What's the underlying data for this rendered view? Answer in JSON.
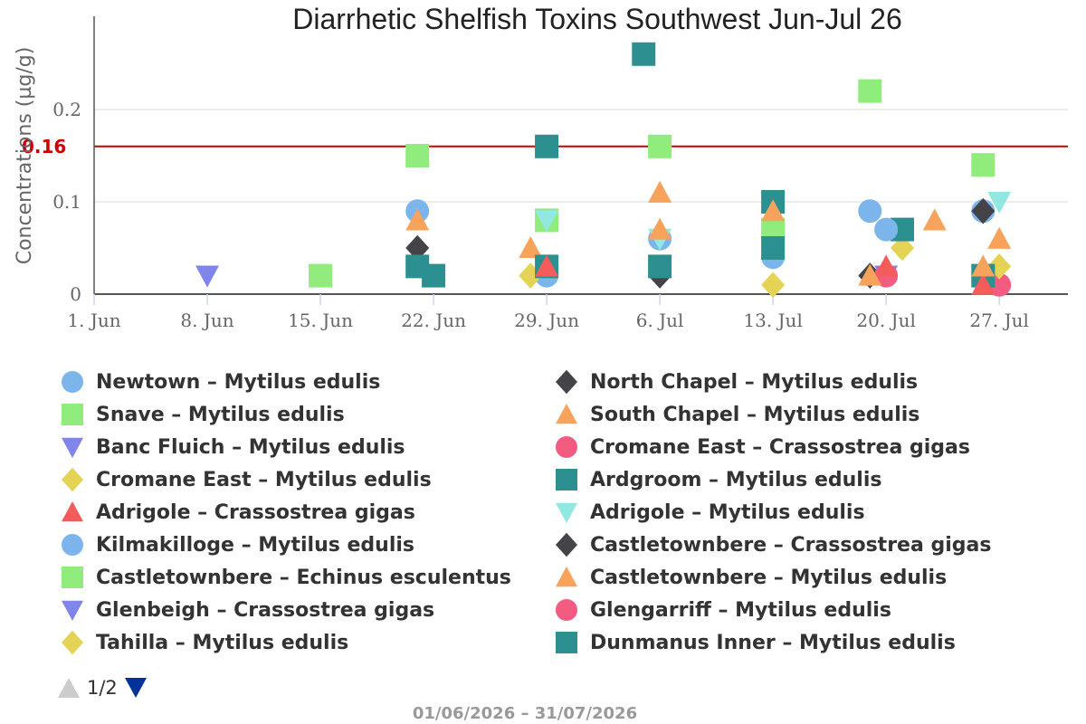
{
  "colors": {
    "blue": "#7cb5ec",
    "green": "#90ed7d",
    "purple": "#8085e9",
    "yellow": "#e4d354",
    "red": "#f45b5b",
    "dark": "#434348",
    "orange": "#f7a35c",
    "pink": "#f15c80",
    "teal": "#2b908f",
    "cyan": "#91e8e1",
    "limit": "#cc0000",
    "pager_active": "#003399",
    "pager_inactive": "#cccccc"
  },
  "chart_data": {
    "type": "scatter",
    "title": "Diarrhetic Shelfish Toxins Southwest Jun-Jul 26",
    "ylabel": "Concentrations (µg/g)",
    "xlabel": "",
    "xlim": [
      "2026-06-01",
      "2026-07-30"
    ],
    "ylim": [
      0,
      0.25
    ],
    "x_ticks": [
      {
        "date": "2026-06-01",
        "label": "1. Jun"
      },
      {
        "date": "2026-06-08",
        "label": "8. Jun"
      },
      {
        "date": "2026-06-15",
        "label": "15. Jun"
      },
      {
        "date": "2026-06-22",
        "label": "22. Jun"
      },
      {
        "date": "2026-06-29",
        "label": "29. Jun"
      },
      {
        "date": "2026-07-06",
        "label": "6. Jul"
      },
      {
        "date": "2026-07-13",
        "label": "13. Jul"
      },
      {
        "date": "2026-07-20",
        "label": "20. Jul"
      },
      {
        "date": "2026-07-27",
        "label": "27. Jul"
      }
    ],
    "y_ticks": [
      {
        "value": 0,
        "label": "0"
      },
      {
        "value": 0.1,
        "label": "0.1"
      },
      {
        "value": 0.2,
        "label": "0.2"
      }
    ],
    "reference_line": {
      "value": 0.16,
      "label": "0.16"
    },
    "grid": true,
    "legend_position": "bottom",
    "series": [
      {
        "name": "Newtown – Mytilus edulis",
        "symbol": "circle",
        "color": "blue",
        "points": [
          {
            "x": "2026-06-21",
            "y": 0.09
          },
          {
            "x": "2026-06-29",
            "y": 0.02
          },
          {
            "x": "2026-07-06",
            "y": 0.06
          },
          {
            "x": "2026-07-19",
            "y": 0.09
          },
          {
            "x": "2026-07-26",
            "y": 0.09
          }
        ]
      },
      {
        "name": "North Chapel – Mytilus edulis",
        "symbol": "diamond",
        "color": "dark",
        "points": [
          {
            "x": "2026-06-21",
            "y": 0.05
          },
          {
            "x": "2026-07-06",
            "y": 0.02
          },
          {
            "x": "2026-07-19",
            "y": 0.02
          },
          {
            "x": "2026-07-26",
            "y": 0.09
          }
        ]
      },
      {
        "name": "Snave – Mytilus edulis",
        "symbol": "square",
        "color": "green",
        "points": [
          {
            "x": "2026-06-15",
            "y": 0.02
          },
          {
            "x": "2026-06-21",
            "y": 0.15
          },
          {
            "x": "2026-06-29",
            "y": 0.08
          },
          {
            "x": "2026-07-06",
            "y": 0.16
          },
          {
            "x": "2026-07-19",
            "y": 0.22
          },
          {
            "x": "2026-07-26",
            "y": 0.14
          }
        ]
      },
      {
        "name": "South Chapel – Mytilus edulis",
        "symbol": "triangle",
        "color": "orange",
        "points": [
          {
            "x": "2026-06-21",
            "y": 0.08
          },
          {
            "x": "2026-06-28",
            "y": 0.05
          },
          {
            "x": "2026-07-06",
            "y": 0.11
          },
          {
            "x": "2026-07-13",
            "y": 0.06
          },
          {
            "x": "2026-07-23",
            "y": 0.08
          },
          {
            "x": "2026-07-27",
            "y": 0.06
          }
        ]
      },
      {
        "name": "Banc Fluich – Mytilus edulis",
        "symbol": "triangle-down",
        "color": "purple",
        "points": [
          {
            "x": "2026-06-08",
            "y": 0.02
          },
          {
            "x": "2026-07-20",
            "y": 0.02
          }
        ]
      },
      {
        "name": "Cromane East – Crassostrea gigas",
        "symbol": "circle",
        "color": "pink",
        "points": [
          {
            "x": "2026-07-20",
            "y": 0.02
          },
          {
            "x": "2026-07-27",
            "y": 0.01
          }
        ]
      },
      {
        "name": "Cromane East – Mytilus edulis",
        "symbol": "diamond",
        "color": "yellow",
        "points": [
          {
            "x": "2026-06-28",
            "y": 0.02
          },
          {
            "x": "2026-07-13",
            "y": 0.01
          },
          {
            "x": "2026-07-21",
            "y": 0.05
          },
          {
            "x": "2026-07-27",
            "y": 0.03
          }
        ]
      },
      {
        "name": "Ardgroom – Mytilus edulis",
        "symbol": "square",
        "color": "teal",
        "points": [
          {
            "x": "2026-06-21",
            "y": 0.03
          },
          {
            "x": "2026-06-22",
            "y": 0.02
          },
          {
            "x": "2026-06-29",
            "y": 0.16
          },
          {
            "x": "2026-06-29",
            "y": 0.03
          },
          {
            "x": "2026-07-05",
            "y": 0.26
          },
          {
            "x": "2026-07-06",
            "y": 0.03
          },
          {
            "x": "2026-07-13",
            "y": 0.1
          },
          {
            "x": "2026-07-21",
            "y": 0.07
          },
          {
            "x": "2026-07-26",
            "y": 0.02
          }
        ]
      },
      {
        "name": "Adrigole – Crassostrea gigas",
        "symbol": "triangle",
        "color": "red",
        "points": [
          {
            "x": "2026-06-29",
            "y": 0.03
          },
          {
            "x": "2026-07-20",
            "y": 0.03
          },
          {
            "x": "2026-07-26",
            "y": 0.01
          }
        ]
      },
      {
        "name": "Adrigole – Mytilus edulis",
        "symbol": "triangle-down",
        "color": "cyan",
        "points": [
          {
            "x": "2026-06-29",
            "y": 0.08
          },
          {
            "x": "2026-07-06",
            "y": 0.06
          },
          {
            "x": "2026-07-27",
            "y": 0.1
          }
        ]
      },
      {
        "name": "Kilmakilloge – Mytilus edulis",
        "symbol": "circle",
        "color": "blue",
        "points": [
          {
            "x": "2026-07-13",
            "y": 0.04
          },
          {
            "x": "2026-07-20",
            "y": 0.07
          }
        ]
      },
      {
        "name": "Castletownbere – Crassostrea gigas",
        "symbol": "diamond",
        "color": "dark",
        "points": []
      },
      {
        "name": "Castletownbere – Echinus esculentus",
        "symbol": "square",
        "color": "green",
        "points": [
          {
            "x": "2026-07-13",
            "y": 0.07
          }
        ]
      },
      {
        "name": "Castletownbere – Mytilus edulis",
        "symbol": "triangle",
        "color": "orange",
        "points": [
          {
            "x": "2026-07-06",
            "y": 0.07
          },
          {
            "x": "2026-07-13",
            "y": 0.09
          },
          {
            "x": "2026-07-19",
            "y": 0.02
          },
          {
            "x": "2026-07-26",
            "y": 0.03
          }
        ]
      },
      {
        "name": "Glenbeigh – Crassostrea gigas",
        "symbol": "triangle-down",
        "color": "purple",
        "points": []
      },
      {
        "name": "Glengarriff – Mytilus edulis",
        "symbol": "circle",
        "color": "pink",
        "points": []
      },
      {
        "name": "Tahilla – Mytilus edulis",
        "symbol": "diamond",
        "color": "yellow",
        "points": []
      },
      {
        "name": "Dunmanus Inner – Mytilus edulis",
        "symbol": "square",
        "color": "teal",
        "points": [
          {
            "x": "2026-07-13",
            "y": 0.05
          }
        ]
      }
    ]
  },
  "pager": {
    "text": "1/2"
  },
  "date_range": "01/06/2026 – 31/07/2026"
}
